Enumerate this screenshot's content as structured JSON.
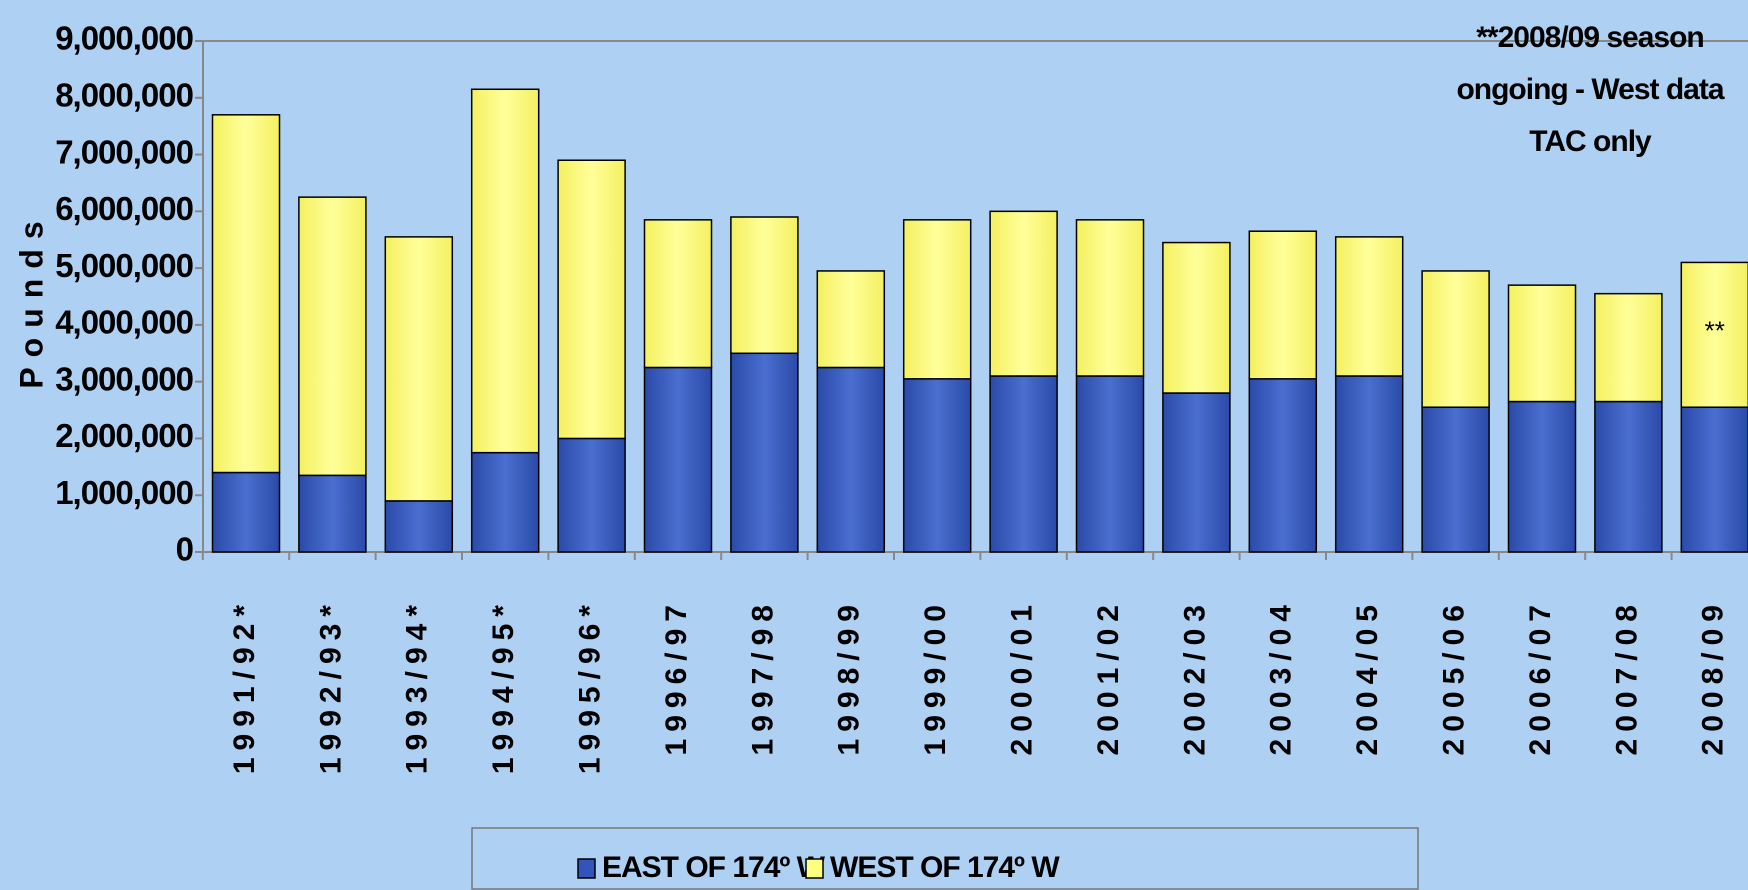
{
  "chart_data": {
    "type": "stacked_bar",
    "y_label": "Pounds",
    "annotation": "**2008/09 season ongoing - West data TAC only",
    "bar_annotation": {
      "category": "2008/09",
      "text": "**"
    },
    "categories": [
      "1991/92*",
      "1992/93*",
      "1993/94*",
      "1994/95*",
      "1995/96*",
      "1996/97",
      "1997/98",
      "1998/99",
      "1999/00",
      "2000/01",
      "2001/02",
      "2002/03",
      "2003/04",
      "2004/05",
      "2005/06",
      "2006/07",
      "2007/08",
      "2008/09"
    ],
    "series": [
      {
        "name": "EAST OF 174º  W",
        "color": "#3355bb",
        "values": [
          1400000,
          1350000,
          900000,
          1750000,
          2000000,
          3250000,
          3500000,
          3250000,
          3050000,
          3100000,
          3100000,
          2800000,
          3050000,
          3100000,
          2550000,
          2650000,
          2650000,
          2550000
        ]
      },
      {
        "name": "WEST OF 174º  W",
        "color": "#ffff80",
        "values": [
          6300000,
          4900000,
          4650000,
          6400000,
          4900000,
          2600000,
          2400000,
          1700000,
          2800000,
          2900000,
          2750000,
          2650000,
          2600000,
          2450000,
          2400000,
          2050000,
          1900000,
          2550000
        ]
      }
    ],
    "ylim": [
      0,
      9000000
    ],
    "yticks": [
      0,
      {
        "value": 1000000,
        "label": "1,000,000"
      },
      {
        "value": 2000000,
        "label": "2,000,000"
      },
      {
        "value": 3000000,
        "label": "3,000,000"
      },
      {
        "value": 4000000,
        "label": "4,000,000"
      },
      {
        "value": 5000000,
        "label": "5,000,000"
      },
      {
        "value": 6000000,
        "label": "6,000,000"
      },
      {
        "value": 7000000,
        "label": "7,000,000"
      },
      {
        "value": 8000000,
        "label": "8,000,000"
      },
      {
        "value": 9000000,
        "label": "9,000,000"
      }
    ],
    "grid": false
  }
}
